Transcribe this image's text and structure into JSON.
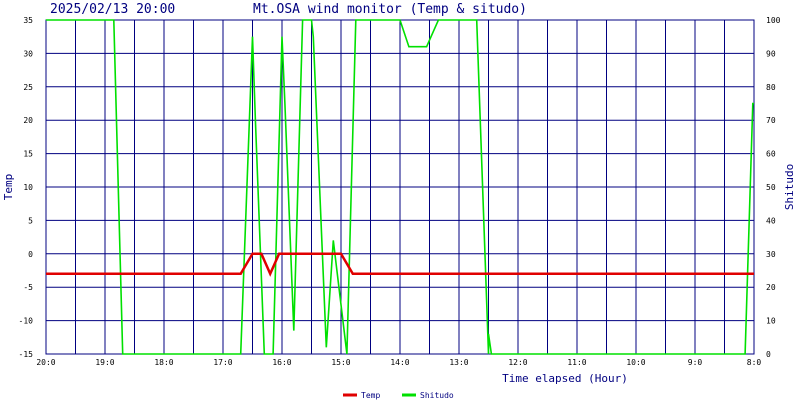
{
  "header": {
    "timestamp": "2025/02/13 20:00",
    "title": "Mt.OSA wind monitor (Temp & situdo)"
  },
  "chart_data": {
    "type": "line",
    "xlabel": "Time elapsed (Hour)",
    "ylabel_left": "Temp",
    "ylabel_right": "Shitudo",
    "x_tick_labels": [
      "20:0",
      "19:0",
      "18:0",
      "17:0",
      "16:0",
      "15:0",
      "14:0",
      "13:0",
      "12:0",
      "11:0",
      "10:0",
      "9:0",
      "8:0"
    ],
    "x_axis": "hours before now; 0 = 20:00 at the left edge, 12 = 8:00 at the right edge",
    "x_range": [
      0,
      12
    ],
    "y_left_ticks": [
      "35",
      "30",
      "25",
      "20",
      "15",
      "10",
      "5",
      "0",
      "-5",
      "-10",
      "-15"
    ],
    "y_left_range": [
      -15,
      35
    ],
    "y_right_ticks": [
      "100",
      "90",
      "80",
      "70",
      "60",
      "50",
      "40",
      "30",
      "20",
      "10",
      "0"
    ],
    "y_right_range": [
      0,
      100
    ],
    "grid": true,
    "legend_placement": "bottom-center",
    "series": [
      {
        "name": "Temp",
        "axis": "left",
        "color": "#e00000",
        "points": [
          [
            0,
            -3
          ],
          [
            3.3,
            -3
          ],
          [
            3.5,
            0
          ],
          [
            3.65,
            0
          ],
          [
            3.8,
            -3
          ],
          [
            3.95,
            0
          ],
          [
            4.3,
            0
          ],
          [
            4.75,
            0
          ],
          [
            5.0,
            0
          ],
          [
            5.2,
            -3
          ],
          [
            12,
            -3
          ]
        ]
      },
      {
        "name": "Shitudo",
        "axis": "right",
        "color": "#00e000",
        "points": [
          [
            0,
            100
          ],
          [
            1.15,
            100
          ],
          [
            1.3,
            0
          ],
          [
            3.3,
            0
          ],
          [
            3.5,
            95
          ],
          [
            3.55,
            70
          ],
          [
            3.7,
            0
          ],
          [
            3.85,
            0
          ],
          [
            4.0,
            95
          ],
          [
            4.05,
            75
          ],
          [
            4.2,
            7
          ],
          [
            4.35,
            100
          ],
          [
            4.5,
            100
          ],
          [
            4.53,
            95
          ],
          [
            4.75,
            2
          ],
          [
            4.87,
            34
          ],
          [
            5.1,
            0
          ],
          [
            5.25,
            100
          ],
          [
            6.0,
            100
          ],
          [
            6.15,
            92
          ],
          [
            6.45,
            92
          ],
          [
            6.65,
            100
          ],
          [
            7.3,
            100
          ],
          [
            7.5,
            0
          ],
          [
            7.5,
            6
          ],
          [
            7.55,
            0
          ],
          [
            11.85,
            0
          ],
          [
            11.98,
            75
          ],
          [
            12,
            75
          ]
        ]
      }
    ]
  },
  "legend": {
    "items": [
      {
        "label": "Temp",
        "color": "#e00000"
      },
      {
        "label": "Shitudo",
        "color": "#00e000"
      }
    ]
  },
  "colors": {
    "grid": "#000080",
    "text": "#000080",
    "axis_tick_text": "#000000"
  }
}
